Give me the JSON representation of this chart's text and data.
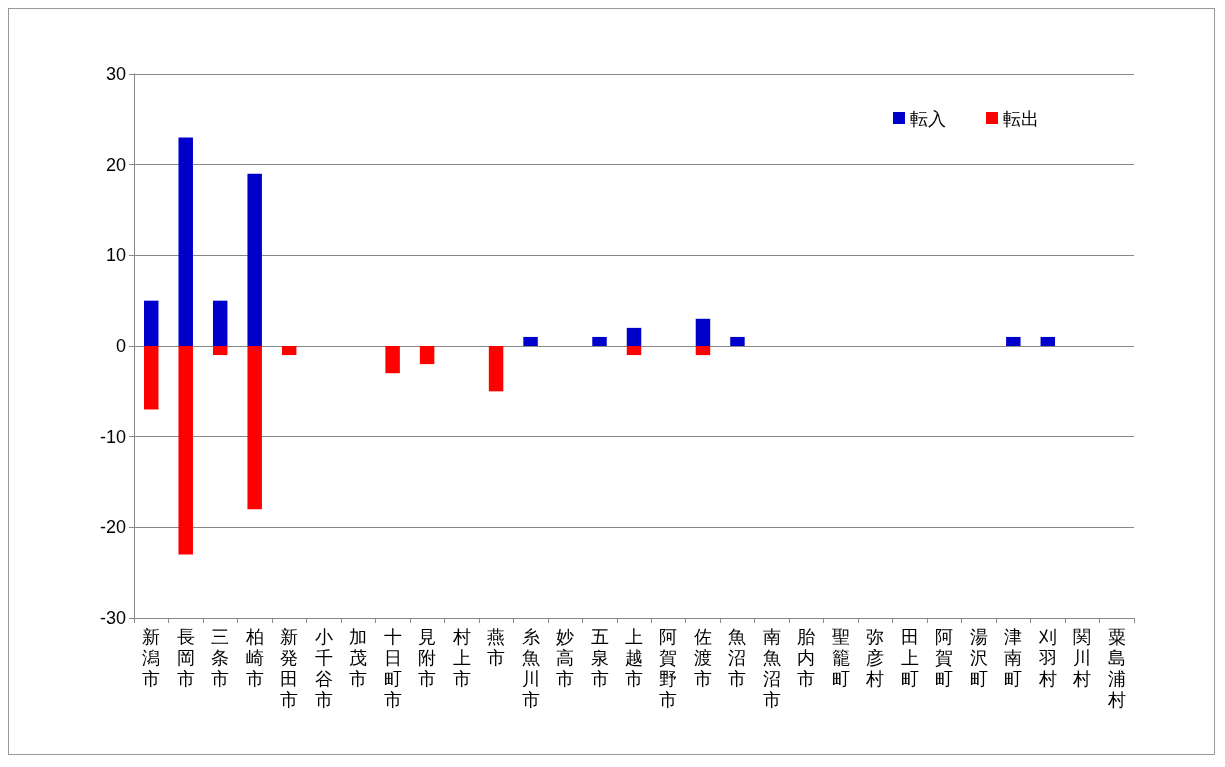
{
  "chart_data": {
    "type": "bar",
    "stacked": true,
    "categories": [
      "新潟市",
      "長岡市",
      "三条市",
      "柏崎市",
      "新発田市",
      "小千谷市",
      "加茂市",
      "十日町市",
      "見附市",
      "村上市",
      "燕市",
      "糸魚川市",
      "妙高市",
      "五泉市",
      "上越市",
      "阿賀野市",
      "佐渡市",
      "魚沼市",
      "南魚沼市",
      "胎内市",
      "聖籠町",
      "弥彦村",
      "田上町",
      "阿賀町",
      "湯沢町",
      "津南町",
      "刈羽村",
      "関川村",
      "粟島浦村"
    ],
    "series": [
      {
        "name": "転入",
        "color": "#0000cc",
        "values": [
          5,
          23,
          5,
          19,
          0,
          0,
          0,
          0,
          0,
          0,
          0,
          1,
          0,
          1,
          2,
          0,
          3,
          1,
          0,
          0,
          0,
          0,
          0,
          0,
          0,
          1,
          1,
          0,
          0
        ]
      },
      {
        "name": "転出",
        "color": "#ff0000",
        "values": [
          -7,
          -23,
          -1,
          -18,
          -1,
          0,
          0,
          -3,
          -2,
          0,
          -5,
          0,
          0,
          0,
          -1,
          0,
          -1,
          0,
          0,
          0,
          0,
          0,
          0,
          0,
          0,
          0,
          0,
          0,
          0
        ]
      }
    ],
    "ylim": [
      -30,
      30
    ],
    "yticks": [
      -30,
      -20,
      -10,
      0,
      10,
      20,
      30
    ],
    "grid": "y",
    "legend": "top right"
  }
}
